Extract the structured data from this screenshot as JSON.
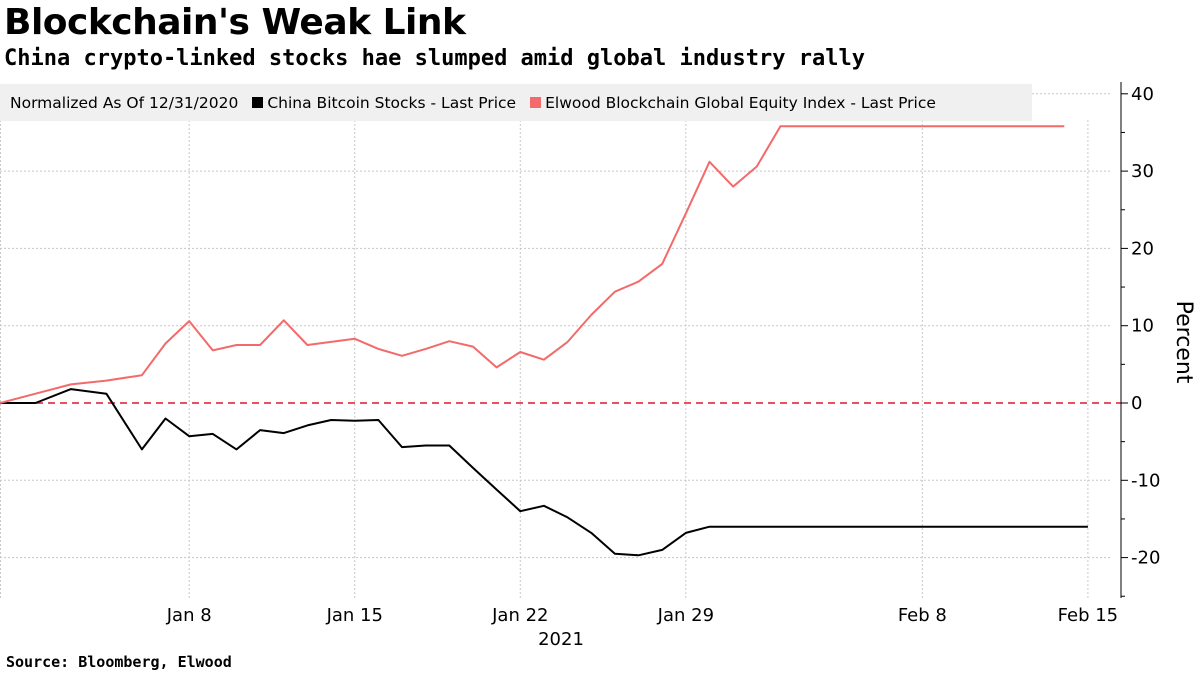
{
  "header": {
    "title": "Blockchain's Weak Link",
    "subtitle": "China crypto-linked stocks hae slumped amid global industry rally"
  },
  "footer": {
    "source": "Source: Bloomberg, Elwood"
  },
  "legend": {
    "note": "Normalized As Of 12/31/2020",
    "items": [
      {
        "label": "China Bitcoin Stocks - Last Price",
        "color": "#000000"
      },
      {
        "label": "Elwood Blockchain Global Equity Index - Last Price",
        "color": "#f26a6a"
      }
    ]
  },
  "chart_data": {
    "type": "line",
    "title": "Blockchain's Weak Link",
    "subtitle": "China crypto-linked stocks hae slumped amid global industry rally",
    "xlabel": "2021",
    "ylabel": "Percent",
    "ylim": [
      -25,
      42
    ],
    "yticks": [
      40,
      30,
      20,
      10,
      0,
      -10,
      -20
    ],
    "ytick_labels": [
      "40",
      "30",
      "20",
      "10",
      "0",
      "-10",
      "-20"
    ],
    "xticks": [
      {
        "day": 8,
        "label": "Jan 8"
      },
      {
        "day": 15,
        "label": "Jan 15"
      },
      {
        "day": 22,
        "label": "Jan 22"
      },
      {
        "day": 29,
        "label": "Jan 29"
      },
      {
        "day": 39,
        "label": "Feb 8"
      },
      {
        "day": 46,
        "label": "Feb 15"
      }
    ],
    "xlim": [
      0,
      47.5
    ],
    "year_label": "2021",
    "reference_line": {
      "value": 0,
      "style": "dashed",
      "color": "#e8374b"
    },
    "legend_position": "top-left",
    "series": [
      {
        "name": "China Bitcoin Stocks - Last Price",
        "color": "#000000",
        "x": [
          0,
          1.5,
          3,
          4.5,
          6,
          7,
          8,
          9,
          10,
          11,
          12,
          13,
          14,
          15,
          16,
          17,
          18,
          19,
          20,
          21,
          22,
          23,
          24,
          25,
          26,
          27,
          28,
          29,
          30,
          31,
          32,
          33,
          34,
          35,
          36,
          37,
          38,
          39,
          40,
          41,
          42,
          43,
          44,
          45,
          46
        ],
        "values": [
          0,
          0,
          1.8,
          1.2,
          -6,
          -2,
          -4.3,
          -4.0,
          -6,
          -3.5,
          -3.9,
          -2.9,
          -2.2,
          -2.3,
          -2.2,
          -5.7,
          -5.5,
          -5.5,
          -8.4,
          -11.2,
          -14,
          -13.3,
          -14.8,
          -16.8,
          -19.5,
          -19.7,
          -19,
          -16.8,
          -16,
          -16,
          -16,
          -16,
          -16,
          -16,
          -16,
          -16,
          -16,
          -16,
          -16,
          -16,
          -16,
          -16,
          -16,
          -16,
          -16
        ]
      },
      {
        "name": "Elwood Blockchain Global Equity Index - Last Price",
        "color": "#f26a6a",
        "x": [
          0,
          1.5,
          3,
          4.5,
          6,
          7,
          8,
          9,
          10,
          11,
          12,
          13,
          14,
          15,
          16,
          17,
          18,
          19,
          20,
          21,
          22,
          23,
          24,
          25,
          26,
          27,
          28,
          29,
          30,
          31,
          32,
          33,
          34,
          35,
          36,
          37,
          38,
          39,
          40,
          41,
          42,
          43,
          44,
          45
        ],
        "values": [
          0,
          1.2,
          2.4,
          2.9,
          3.6,
          7.7,
          10.6,
          6.8,
          7.5,
          7.5,
          10.7,
          7.5,
          7.9,
          8.3,
          7.0,
          6.1,
          7.0,
          8.0,
          7.3,
          4.6,
          6.6,
          5.6,
          7.9,
          11.4,
          14.4,
          15.7,
          18.0,
          24.5,
          31.2,
          28.0,
          30.6,
          35.8,
          35.8,
          35.8,
          35.8,
          35.8,
          35.8,
          35.8,
          35.8,
          35.8,
          35.8,
          35.8,
          35.8,
          35.8
        ]
      }
    ]
  }
}
